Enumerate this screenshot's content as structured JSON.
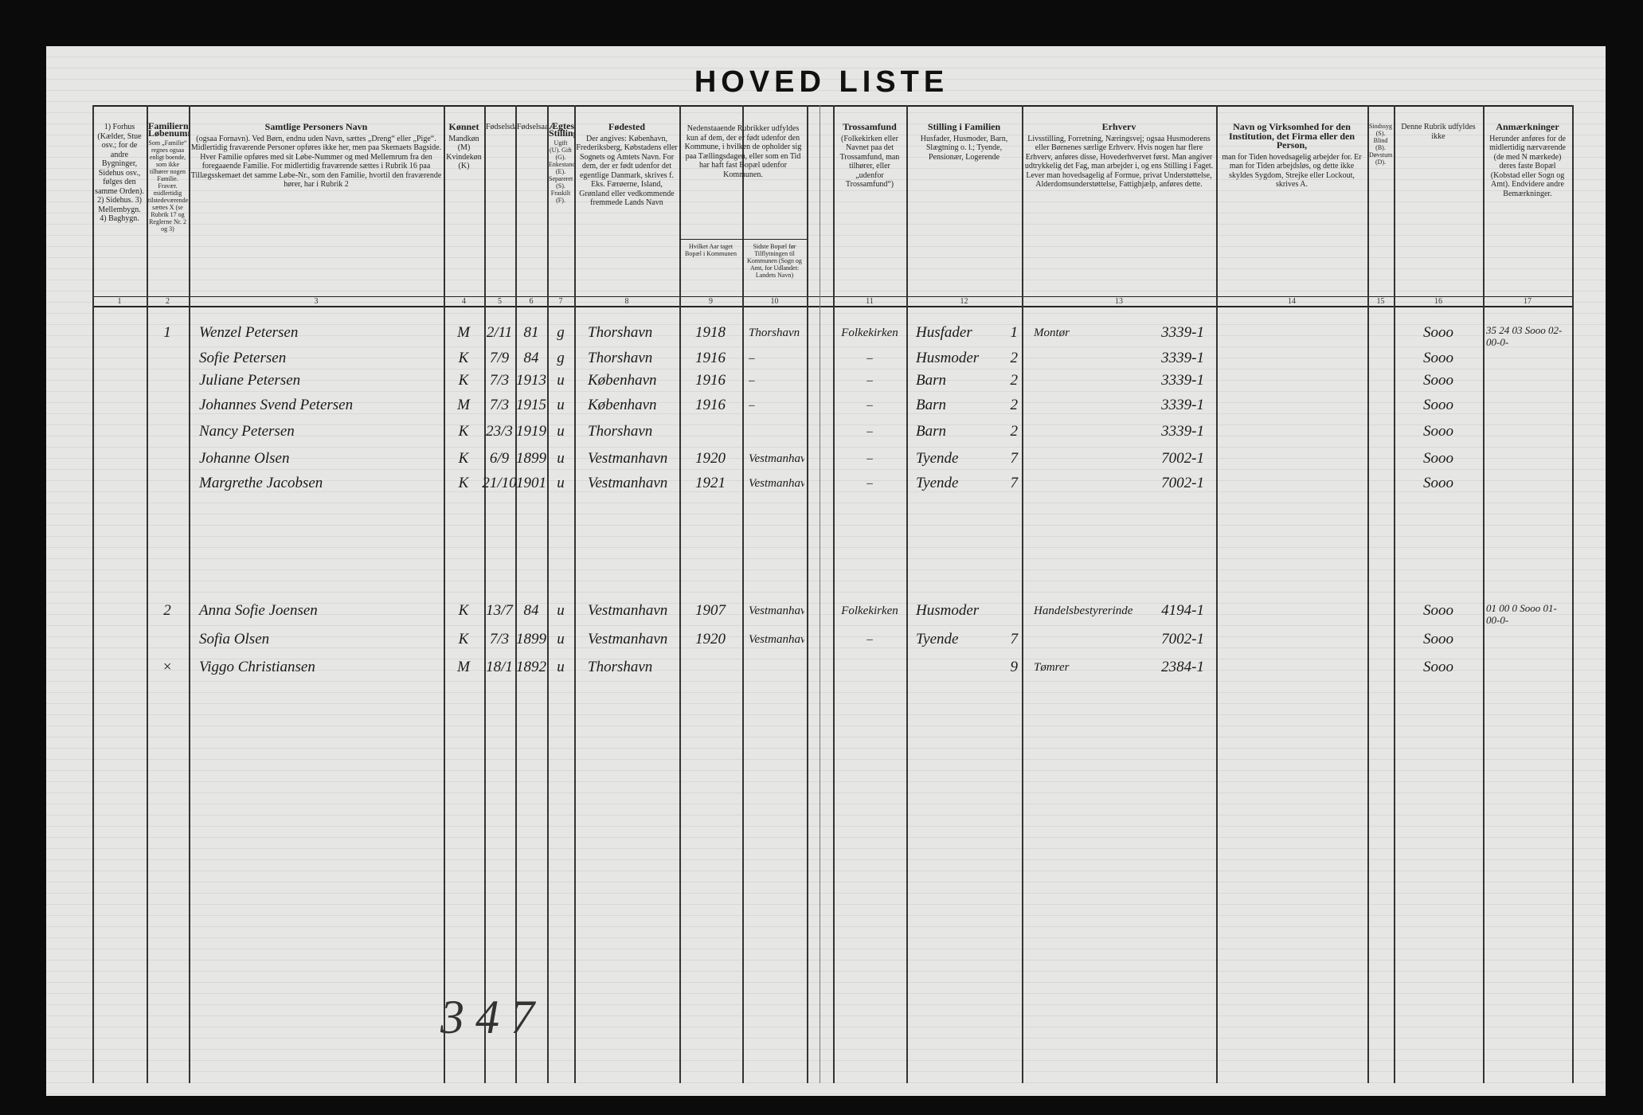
{
  "title": "HOVED LISTE",
  "columns": [
    {
      "number": "1",
      "text": "1) Forhus (Kælder, Stue osv.; for de andre Bygninger, Sidehus osv., følges den samme Orden). 2) Sidehus. 3) Mellembygn. 4) Baghygn."
    },
    {
      "number": "2",
      "title": "Familiernes Løbenumre",
      "text": "Som „Familie“ regnes ogsaa enligt boende, som ikke tilhører nogen Familie. Fravær. midlertidig tilstedeværende sættes X (se Rubrik 17 og Reglerne Nr. 2 og 3)"
    },
    {
      "number": "3",
      "title": "Samtlige Personers Navn",
      "text": "(ogsaa Fornavn). Ved Børn, endnu uden Navn, sættes „Dreng“ eller „Pige“. Midlertidig fraværende Personer opføres ikke her, men paa Skemaets Bagside. Hver Familie opføres med sit Løbe-Nummer og med Mellemrum fra den foregaaende Familie. For midlertidig fraværende sættes i Rubrik 16 paa Tillægsskemaet det samme Løbe-Nr., som den Familie, hvortil den fraværende hører, har i Rubrik 2"
    },
    {
      "number": "4",
      "title": "Kønnet",
      "text": "Mandkøn (M) Kvindekøn (K)"
    },
    {
      "number": "5",
      "text": "Fødselsdag"
    },
    {
      "number": "6",
      "text": "Fødselsaar"
    },
    {
      "number": "7",
      "title": "Ægteskabelig Stilling",
      "text": "Ugift (U). Gift (G). Enkestand (E). Separeret (S). Fraskilt (F)."
    },
    {
      "number": "8",
      "title": "Fødested",
      "text": "Der angives: København, Frederiksberg, Købstadens eller Sognets og Amtets Navn. For dem, der er født udenfor det egentlige Danmark, skrives f. Eks. Færøerne, Island, Grønland eller vedkommende fremmede Lands Navn"
    },
    {
      "number": "9",
      "text": "Hvilket Aar taget Bopæl i Kommunen"
    },
    {
      "number": "10",
      "text": "Sidste Bopæl før Tilflytningen til Kommunen (Sogn og Amt, for Udlandet: Landets Navn)"
    },
    {
      "number": "11",
      "title": "Trossamfund",
      "text": "(Folkekirken eller Navnet paa det Trossamfund, man tilhører, eller „udenfor Trossamfund“)"
    },
    {
      "number": "12",
      "title": "Stilling i Familien",
      "text": "Husfader, Husmoder, Barn, Slægtning o. l.; Tyende, Pensionær, Logerende"
    },
    {
      "number": "13",
      "title": "Erhverv",
      "text": "Livsstilling, Forretning, Næringsvej; ogsaa Husmoderens eller Børnenes særlige Erhverv. Hvis nogen har flere Erhverv, anføres disse, Hovederhvervet først. Man angiver udtrykkelig det Fag, man arbejder i, og ens Stilling i Faget. Lever man hovedsagelig af Formue, privat Understøttelse, Alderdomsunderstøttelse, Fattighjælp, anføres dette."
    },
    {
      "number": "14",
      "title": "Navn og Virksomhed for den Institution, det Firma eller den Person,",
      "text": "man for Tiden hovedsagelig arbejder for. Er man for Tiden arbejdsløs, og dette ikke skyldes Sygdom, Strejke eller Lockout, skrives A."
    },
    {
      "number": "15",
      "text": "Sindssyg (S). Blind (B). Døvstum (D)."
    },
    {
      "number": "16",
      "text": "Denne Rubrik udfyldes ikke"
    },
    {
      "number": "17",
      "title": "Anmærkninger",
      "text": "Herunder anføres for de midlertidig nærværende (de med N mærkede) deres faste Bopæl (Kobstad eller Sogn og Amt). Endvidere andre Bemærkninger."
    }
  ],
  "group_header": "Nedenstaaende Rubrikker udfyldes kun af dem, der er født udenfor den Kommune, i hvilken de opholder sig paa Tællingsdagen, eller som en Tid har haft fast Bopæl udenfor Kommunen.",
  "rows": [
    {
      "no": "1",
      "name": "Wenzel Petersen",
      "sex": "M",
      "born": "2/11",
      "year": "81",
      "marital": "g",
      "birthplace": "Thorshavn",
      "moved": "1918",
      "prev": "Thorshavn",
      "faith": "Folkekirken",
      "role": "Husfader",
      "role_no": "1",
      "trade": "Montør",
      "trade_code": "3339-1",
      "c16": "Sooo",
      "c17": "35 24 03 Sooo 02-00-0-"
    },
    {
      "name": "Sofie Petersen",
      "sex": "K",
      "born": "7/9",
      "year": "84",
      "marital": "g",
      "birthplace": "Thorshavn",
      "moved": "1916",
      "prev": "–",
      "faith": "–",
      "role": "Husmoder",
      "role_no": "2",
      "trade_code": "3339-1",
      "c16": "Sooo"
    },
    {
      "name": "Juliane Petersen",
      "sex": "K",
      "born": "7/3",
      "year": "1913",
      "marital": "u",
      "birthplace": "København",
      "moved": "1916",
      "prev": "–",
      "faith": "–",
      "role": "Barn",
      "role_no": "2",
      "trade_code": "3339-1",
      "c16": "Sooo"
    },
    {
      "name": "Johannes Svend Petersen",
      "sex": "M",
      "born": "7/3",
      "year": "1915",
      "marital": "u",
      "birthplace": "København",
      "moved": "1916",
      "prev": "–",
      "faith": "–",
      "role": "Barn",
      "role_no": "2",
      "trade_code": "3339-1",
      "c16": "Sooo"
    },
    {
      "name": "Nancy Petersen",
      "sex": "K",
      "born": "23/3",
      "year": "1919",
      "marital": "u",
      "birthplace": "Thorshavn",
      "faith": "–",
      "role": "Barn",
      "role_no": "2",
      "trade_code": "3339-1",
      "c16": "Sooo"
    },
    {
      "name": "Johanne Olsen",
      "sex": "K",
      "born": "6/9",
      "year": "1899",
      "marital": "u",
      "birthplace": "Vestmanhavn",
      "moved": "1920",
      "prev": "Vestmanhavn",
      "faith": "–",
      "role": "Tyende",
      "role_no": "7",
      "trade_code": "7002-1",
      "c16": "Sooo"
    },
    {
      "name": "Margrethe Jacobsen",
      "sex": "K",
      "born": "21/10",
      "year": "1901",
      "marital": "u",
      "birthplace": "Vestmanhavn",
      "moved": "1921",
      "prev": "Vestmanhavn",
      "faith": "–",
      "role": "Tyende",
      "role_no": "7",
      "trade_code": "7002-1",
      "c16": "Sooo"
    },
    {
      "no": "2",
      "name": "Anna Sofie Joensen",
      "sex": "K",
      "born": "13/7",
      "year": "84",
      "marital": "u",
      "birthplace": "Vestmanhavn",
      "moved": "1907",
      "prev": "Vestmanhavn",
      "faith": "Folkekirken",
      "role": "Husmoder",
      "trade": "Handelsbestyrerinde",
      "trade_code": "4194-1",
      "c16": "Sooo",
      "c17": "01 00 0 Sooo 01-00-0-"
    },
    {
      "name": "Sofia Olsen",
      "sex": "K",
      "born": "7/3",
      "year": "1899",
      "marital": "u",
      "birthplace": "Vestmanhavn",
      "moved": "1920",
      "prev": "Vestmanhavn",
      "faith": "–",
      "role": "Tyende",
      "role_no": "7",
      "trade_code": "7002-1",
      "c16": "Sooo"
    },
    {
      "no": "×",
      "name": "Viggo Christiansen",
      "sex": "M",
      "born": "18/1",
      "year": "1892",
      "marital": "u",
      "birthplace": "Thorshavn",
      "role_no": "9",
      "trade": "Tømrer",
      "trade_code": "2384-1",
      "c16": "Sooo"
    }
  ],
  "sheet_number": "347"
}
